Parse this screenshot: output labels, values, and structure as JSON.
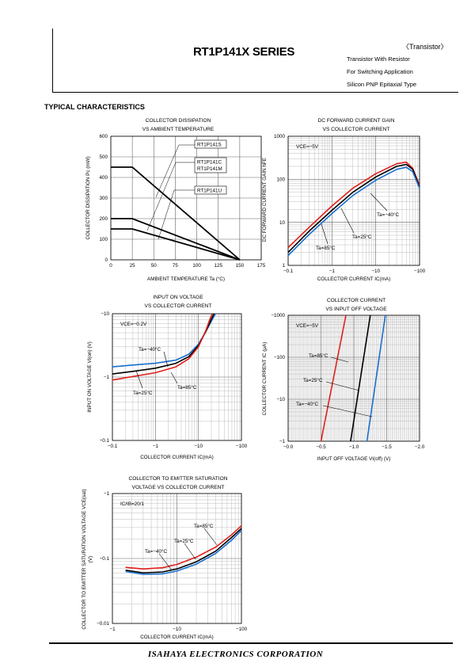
{
  "header": {
    "series_title": "RT1P141X SERIES",
    "category": "〈Transistor〉",
    "subtitles": [
      "Transistor With Resistor",
      "For Switching Application",
      "Silicon PNP Epitaxial Type"
    ]
  },
  "section_title": "TYPICAL CHARACTERISTICS",
  "footer": "ISAHAYA ELECTRONICS CORPORATION",
  "chart_data": [
    {
      "id": "c1",
      "type": "line",
      "title": [
        "COLLECTOR DISSIPATION",
        "VS AMBIENT TEMPERATURE"
      ],
      "xlabel": "AMBIENT TEMPERATURE Ta (°C)",
      "ylabel": "COLLECTOR DISSIPATION Pc (mW)",
      "xscale": "linear",
      "yscale": "linear",
      "xlim": [
        0,
        175
      ],
      "ylim": [
        0,
        600
      ],
      "xticks": [
        0,
        25,
        50,
        75,
        100,
        125,
        150,
        175
      ],
      "xtick_labels": [
        "0",
        "25",
        "50",
        "75",
        "100",
        "125",
        "150",
        "175"
      ],
      "yticks": [
        0,
        100,
        200,
        300,
        400,
        500,
        600
      ],
      "ytick_labels": [
        "0",
        "100",
        "200",
        "300",
        "400",
        "500",
        "600"
      ],
      "series": [
        {
          "name": "RT1P141S",
          "color": "#000000",
          "x": [
            0,
            25,
            150
          ],
          "y": [
            450,
            450,
            0
          ]
        },
        {
          "name": "RT1P141C / RT1P141M",
          "color": "#000000",
          "x": [
            0,
            25,
            150
          ],
          "y": [
            200,
            200,
            0
          ]
        },
        {
          "name": "RT1P141U",
          "color": "#000000",
          "x": [
            0,
            25,
            150
          ],
          "y": [
            150,
            150,
            0
          ]
        }
      ],
      "legend_boxes": [
        [
          "RT1P141S"
        ],
        [
          "RT1P141C",
          "RT1P141M"
        ],
        [
          "RT1P141U"
        ]
      ]
    },
    {
      "id": "c2",
      "type": "line",
      "title": [
        "DC FORWARD CURRENT GAIN",
        "VS COLLECTOR CURRENT"
      ],
      "xlabel": "COLLECTOR CURRENT  IC(mA)",
      "ylabel": "DC FORWARD CURRENT GAIN hFE",
      "xscale": "log",
      "yscale": "log",
      "xlim": [
        0.1,
        100
      ],
      "ylim": [
        1,
        1000
      ],
      "xticks": [
        0.1,
        1,
        10,
        100
      ],
      "xtick_labels": [
        "−0.1",
        "−1",
        "−10",
        "−100"
      ],
      "yticks": [
        1,
        10,
        100,
        1000
      ],
      "ytick_labels": [
        "1",
        "10",
        "100",
        "1000"
      ],
      "condition": "VCE=−5V",
      "series": [
        {
          "name": "Ta=85°C",
          "color": "#e0201c",
          "x": [
            0.1,
            0.3,
            1,
            3,
            10,
            30,
            50,
            70,
            100
          ],
          "y": [
            2.6,
            7.6,
            24,
            62,
            135,
            230,
            250,
            180,
            72
          ]
        },
        {
          "name": "Ta=25°C",
          "color": "#000000",
          "x": [
            0.1,
            0.3,
            1,
            3,
            10,
            30,
            50,
            70,
            100
          ],
          "y": [
            2.0,
            6.2,
            19,
            50,
            113,
            200,
            222,
            170,
            66
          ]
        },
        {
          "name": "Ta=−40°C",
          "color": "#1a6fd0",
          "x": [
            0.1,
            0.3,
            1,
            3,
            10,
            30,
            50,
            70,
            100
          ],
          "y": [
            1.7,
            5.2,
            16,
            42,
            95,
            170,
            190,
            150,
            62
          ]
        }
      ],
      "annotations": [
        "Ta=−40°C",
        "Ta=25°C",
        "Ta=85°C"
      ]
    },
    {
      "id": "c3",
      "type": "line",
      "title": [
        "INPUT ON VOLTAGE",
        "VS COLLECTOR CURRENT"
      ],
      "xlabel": "COLLECTOR CURRENT  IC(mA)",
      "ylabel": "INPUT ON VOLTAGE VI(on) (V)",
      "xscale": "log",
      "yscale": "log",
      "xlim": [
        0.1,
        100
      ],
      "ylim": [
        0.1,
        10
      ],
      "xticks": [
        0.1,
        1,
        10,
        100
      ],
      "xtick_labels": [
        "−0.1",
        "−1",
        "−10",
        "−100"
      ],
      "yticks": [
        0.1,
        1,
        10
      ],
      "ytick_labels": [
        "−0.1",
        "−1",
        "−10"
      ],
      "condition": "VCE=−0.2V",
      "series": [
        {
          "name": "Ta=−40°C",
          "color": "#1a6fd0",
          "x": [
            0.1,
            0.3,
            1,
            3,
            6,
            10,
            15,
            20,
            25
          ],
          "y": [
            1.45,
            1.55,
            1.65,
            1.85,
            2.3,
            3.3,
            5.3,
            7.6,
            10
          ]
        },
        {
          "name": "Ta=25°C",
          "color": "#000000",
          "x": [
            0.1,
            0.3,
            1,
            3,
            6,
            10,
            15,
            20,
            23
          ],
          "y": [
            1.12,
            1.23,
            1.38,
            1.65,
            2.1,
            3.15,
            5.3,
            8.2,
            10
          ]
        },
        {
          "name": "Ta=85°C",
          "color": "#e0201c",
          "x": [
            0.1,
            0.3,
            1,
            3,
            6,
            10,
            15,
            19,
            21
          ],
          "y": [
            0.9,
            1.02,
            1.17,
            1.45,
            1.95,
            3.0,
            5.5,
            8.6,
            10
          ]
        }
      ],
      "annotations": [
        "Ta=−40°C",
        "Ta=25°C",
        "Ta=85°C"
      ]
    },
    {
      "id": "c4",
      "type": "line",
      "title": [
        "COLLECTOR CURRENT",
        "VS INPUT OFF VOLTAGE"
      ],
      "xlabel": "INPUT OFF VOLTAGE VI(off) (V)",
      "ylabel": "COLLECTOR CURRENT IC (μA)",
      "xscale": "linear",
      "yscale": "log",
      "xlim": [
        0,
        2.0
      ],
      "ylim": [
        1,
        1000
      ],
      "xticks": [
        0,
        0.5,
        1.0,
        1.5,
        2.0
      ],
      "xtick_labels": [
        "−0.0",
        "−0.5",
        "−1.0",
        "−1.5",
        "−2.0"
      ],
      "yticks": [
        1,
        10,
        100,
        1000
      ],
      "ytick_labels": [
        "−1",
        "−10",
        "−100",
        "−1000"
      ],
      "condition": "VCE=−5V",
      "series": [
        {
          "name": "Ta=85°C",
          "color": "#e0201c",
          "x": [
            0.5,
            0.88
          ],
          "y": [
            1,
            1000
          ]
        },
        {
          "name": "Ta=25°C",
          "color": "#000000",
          "x": [
            0.95,
            1.25
          ],
          "y": [
            1,
            1000
          ]
        },
        {
          "name": "Ta=−40°C",
          "color": "#1a6fd0",
          "x": [
            1.2,
            1.48
          ],
          "y": [
            1,
            1000
          ]
        }
      ],
      "annotations": [
        "Ta=85°C",
        "Ta=25°C",
        "Ta=−40°C"
      ]
    },
    {
      "id": "c5",
      "type": "line",
      "title": [
        "COLLECTOR TO EMITTER SATURATION",
        "VOLTAGE VS COLLECTOR CURRENT"
      ],
      "xlabel": "COLLECTOR CURRENT  IC(mA)",
      "ylabel": "COLLECTOR TO EMITTER SATURATION VOLTAGE VCE(sat) (V)",
      "xscale": "log",
      "yscale": "log",
      "xlim": [
        1,
        100
      ],
      "ylim": [
        0.01,
        1
      ],
      "xticks": [
        1,
        10,
        100
      ],
      "xtick_labels": [
        "−1",
        "−10",
        "−100"
      ],
      "yticks": [
        0.01,
        0.1,
        1
      ],
      "ytick_labels": [
        "−0.01",
        "−0.1",
        "−1"
      ],
      "condition": "IC/IB=20/1",
      "series": [
        {
          "name": "Ta=85°C",
          "color": "#e0201c",
          "x": [
            1.6,
            3,
            6,
            10,
            20,
            40,
            70,
            100
          ],
          "y": [
            0.073,
            0.069,
            0.072,
            0.081,
            0.105,
            0.15,
            0.23,
            0.32
          ]
        },
        {
          "name": "Ta=25°C",
          "color": "#000000",
          "x": [
            1.6,
            3,
            6,
            10,
            20,
            40,
            70,
            100
          ],
          "y": [
            0.066,
            0.06,
            0.062,
            0.069,
            0.089,
            0.13,
            0.21,
            0.29
          ]
        },
        {
          "name": "Ta=−40°C",
          "color": "#1a6fd0",
          "x": [
            1.6,
            3,
            6,
            10,
            20,
            40,
            70,
            100
          ],
          "y": [
            0.063,
            0.057,
            0.058,
            0.064,
            0.082,
            0.12,
            0.19,
            0.27
          ]
        }
      ],
      "annotations": [
        "Ta=85°C",
        "Ta=25°C",
        "Ta=−40°C"
      ]
    }
  ]
}
